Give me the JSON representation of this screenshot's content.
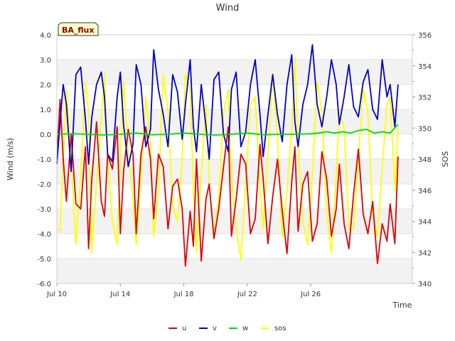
{
  "chart_data": {
    "type": "line",
    "title": "Wind",
    "badge": "BA_flux",
    "xlabel": "Time",
    "ylabel": "Wind (m/s)",
    "y2label": "SOS",
    "x_unit": "days since Jul 10",
    "xlim": [
      0,
      22.4
    ],
    "ylim": [
      -6,
      4
    ],
    "y2lim": [
      340,
      356
    ],
    "x_ticks": [
      {
        "value": 0,
        "label": "Jul 10"
      },
      {
        "value": 4,
        "label": "Jul 14"
      },
      {
        "value": 8,
        "label": "Jul 18"
      },
      {
        "value": 12,
        "label": "Jul 22"
      },
      {
        "value": 16,
        "label": "Jul 26"
      }
    ],
    "y_ticks": [
      {
        "value": 4,
        "label": "4.0"
      },
      {
        "value": 3,
        "label": "3.0"
      },
      {
        "value": 2,
        "label": "2.0"
      },
      {
        "value": 1,
        "label": "1.0"
      },
      {
        "value": 0,
        "label": "0.0"
      },
      {
        "value": -1,
        "label": "-1.0"
      },
      {
        "value": -2,
        "label": "-2.0"
      },
      {
        "value": -3,
        "label": "-3.0"
      },
      {
        "value": -4,
        "label": "-4.0"
      },
      {
        "value": -5,
        "label": "-5.0"
      },
      {
        "value": -6,
        "label": "-6.0"
      }
    ],
    "y2_ticks": [
      {
        "value": 356,
        "label": "356"
      },
      {
        "value": 354,
        "label": "354"
      },
      {
        "value": 352,
        "label": "352"
      },
      {
        "value": 350,
        "label": "350"
      },
      {
        "value": 348,
        "label": "348"
      },
      {
        "value": 346,
        "label": "346"
      },
      {
        "value": 344,
        "label": "344"
      },
      {
        "value": 342,
        "label": "342"
      },
      {
        "value": 340,
        "label": "340"
      }
    ],
    "series": [
      {
        "name": "u",
        "color": "#e00000",
        "axis": "left",
        "x": [
          0.0,
          0.2,
          0.4,
          0.6,
          0.9,
          1.2,
          1.5,
          1.8,
          2.0,
          2.2,
          2.5,
          2.8,
          3.0,
          3.2,
          3.5,
          3.8,
          4.0,
          4.2,
          4.5,
          4.8,
          5.0,
          5.3,
          5.6,
          5.9,
          6.1,
          6.4,
          6.7,
          7.0,
          7.3,
          7.6,
          7.9,
          8.1,
          8.4,
          8.6,
          8.8,
          9.1,
          9.4,
          9.6,
          9.9,
          10.2,
          10.5,
          10.8,
          11.0,
          11.3,
          11.6,
          11.9,
          12.2,
          12.5,
          12.8,
          13.0,
          13.3,
          13.6,
          13.9,
          14.2,
          14.5,
          14.8,
          15.0,
          15.2,
          15.5,
          15.8,
          16.1,
          16.4,
          16.7,
          17.0,
          17.3,
          17.6,
          17.8,
          18.1,
          18.4,
          18.7,
          19.0,
          19.3,
          19.6,
          19.9,
          20.2,
          20.5,
          20.8,
          21.0,
          21.3,
          21.5
        ],
        "values": [
          -1.0,
          1.4,
          -1.0,
          -2.7,
          0.0,
          -2.8,
          -3.0,
          -0.5,
          -4.6,
          -1.8,
          0.5,
          -2.7,
          -3.3,
          -0.8,
          -1.4,
          0.3,
          -4.0,
          -1.5,
          0.2,
          -0.8,
          -4.0,
          -0.8,
          0.3,
          -1.0,
          -3.4,
          -0.8,
          -1.3,
          -3.8,
          -2.1,
          -1.8,
          -3.0,
          -5.3,
          -3.1,
          -4.5,
          -1.0,
          -5.1,
          -2.6,
          -2.0,
          -4.2,
          -3.0,
          -1.3,
          0.3,
          -4.1,
          -2.6,
          -0.8,
          -1.2,
          -4.0,
          -3.4,
          -0.4,
          -1.8,
          -4.4,
          -2.5,
          -1.0,
          -3.1,
          -4.8,
          -1.9,
          -0.5,
          -3.9,
          -2.0,
          -1.5,
          -4.3,
          -3.6,
          -0.7,
          -1.8,
          -4.1,
          -3.0,
          -1.2,
          -3.6,
          -4.6,
          -2.4,
          -0.6,
          -3.2,
          -4.0,
          -2.7,
          -5.2,
          -3.6,
          -4.3,
          -2.8,
          -4.4,
          -0.9
        ]
      },
      {
        "name": "v",
        "color": "#0000cc",
        "axis": "left",
        "x": [
          0.0,
          0.2,
          0.4,
          0.6,
          0.9,
          1.2,
          1.5,
          1.8,
          2.0,
          2.2,
          2.5,
          2.8,
          3.0,
          3.2,
          3.5,
          3.8,
          4.0,
          4.2,
          4.5,
          4.8,
          5.0,
          5.3,
          5.6,
          5.9,
          6.1,
          6.4,
          6.7,
          7.0,
          7.3,
          7.6,
          7.9,
          8.1,
          8.4,
          8.6,
          8.8,
          9.1,
          9.4,
          9.6,
          9.9,
          10.2,
          10.5,
          10.8,
          11.0,
          11.3,
          11.6,
          11.9,
          12.2,
          12.5,
          12.8,
          13.0,
          13.3,
          13.6,
          13.9,
          14.2,
          14.5,
          14.8,
          15.0,
          15.2,
          15.5,
          15.8,
          16.1,
          16.4,
          16.7,
          17.0,
          17.3,
          17.6,
          17.8,
          18.1,
          18.4,
          18.7,
          19.0,
          19.3,
          19.6,
          19.9,
          20.2,
          20.5,
          20.8,
          21.0,
          21.3,
          21.5
        ],
        "values": [
          -1.2,
          0.5,
          2.0,
          1.2,
          -1.5,
          2.4,
          2.7,
          0.6,
          -1.2,
          0.7,
          2.0,
          2.5,
          1.5,
          -0.8,
          -1.1,
          1.5,
          2.5,
          0.4,
          -1.3,
          -0.4,
          2.8,
          2.0,
          -0.5,
          0.2,
          3.4,
          1.8,
          0.8,
          -0.5,
          2.4,
          1.7,
          -0.2,
          1.2,
          3.0,
          0.3,
          -0.7,
          2.0,
          0.3,
          -1.0,
          2.2,
          2.5,
          0.0,
          -0.7,
          1.8,
          2.5,
          -0.5,
          0.1,
          2.0,
          3.0,
          0.8,
          -0.9,
          0.8,
          2.4,
          0.8,
          -0.3,
          2.0,
          3.2,
          0.5,
          -0.5,
          1.2,
          2.0,
          3.6,
          1.2,
          0.3,
          1.5,
          3.0,
          2.0,
          0.4,
          1.5,
          2.8,
          1.1,
          0.7,
          2.1,
          2.6,
          1.0,
          0.6,
          3.0,
          1.5,
          2.0,
          0.3,
          2.0
        ]
      },
      {
        "name": "w",
        "color": "#00dd00",
        "axis": "left",
        "x": [
          0.0,
          1.0,
          2.0,
          3.0,
          4.0,
          5.0,
          6.0,
          7.0,
          8.0,
          9.0,
          10.0,
          11.0,
          12.0,
          13.0,
          14.0,
          15.0,
          16.0,
          16.5,
          17.0,
          17.5,
          18.0,
          18.5,
          19.0,
          19.5,
          20.0,
          20.5,
          21.0,
          21.5
        ],
        "values": [
          0.0,
          0.02,
          0.0,
          -0.03,
          0.0,
          0.05,
          -0.02,
          0.0,
          0.05,
          0.0,
          -0.03,
          0.0,
          0.05,
          -0.02,
          0.0,
          0.0,
          0.02,
          0.05,
          0.1,
          0.05,
          0.1,
          0.05,
          0.15,
          0.2,
          0.05,
          0.1,
          0.05,
          0.4
        ]
      },
      {
        "name": "sos",
        "color": "#ffff00",
        "axis": "right",
        "x": [
          0.0,
          0.2,
          0.4,
          0.6,
          0.9,
          1.2,
          1.5,
          1.8,
          2.0,
          2.2,
          2.5,
          2.8,
          3.0,
          3.2,
          3.5,
          3.8,
          4.0,
          4.2,
          4.5,
          4.8,
          5.0,
          5.3,
          5.6,
          5.9,
          6.1,
          6.4,
          6.7,
          7.0,
          7.3,
          7.6,
          7.9,
          8.1,
          8.4,
          8.6,
          8.8,
          9.1,
          9.4,
          9.6,
          9.9,
          10.2,
          10.5,
          10.8,
          11.0,
          11.3,
          11.6,
          11.9,
          12.2,
          12.5,
          12.8,
          13.0,
          13.3,
          13.6,
          13.9,
          14.2,
          14.5,
          14.8,
          15.0,
          15.2,
          15.5,
          15.8,
          16.1,
          16.4,
          16.7,
          17.0,
          17.3,
          17.6,
          17.8,
          18.1,
          18.4,
          18.7,
          19.0,
          19.3,
          19.6,
          19.9,
          20.2,
          20.5,
          20.8,
          21.0,
          21.3,
          21.5
        ],
        "values": [
          343.5,
          343.4,
          348.0,
          352.5,
          348.0,
          342.5,
          347.0,
          353.0,
          351.0,
          342.0,
          346.5,
          350.5,
          353.5,
          348.0,
          344.0,
          342.5,
          348.0,
          353.0,
          348.5,
          345.5,
          342.5,
          347.0,
          352.0,
          349.0,
          343.0,
          346.0,
          353.5,
          351.0,
          345.0,
          344.0,
          348.0,
          353.5,
          352.5,
          346.0,
          342.0,
          347.0,
          351.5,
          346.5,
          343.0,
          345.5,
          351.0,
          352.5,
          347.0,
          343.5,
          341.5,
          346.5,
          351.5,
          352.0,
          346.0,
          343.5,
          348.5,
          353.5,
          349.5,
          343.0,
          346.0,
          350.0,
          354.5,
          349.0,
          344.0,
          342.5,
          347.0,
          353.0,
          351.0,
          344.5,
          342.0,
          347.0,
          351.0,
          350.0,
          343.5,
          343.5,
          348.0,
          352.5,
          351.0,
          344.5,
          343.0,
          347.5,
          351.5,
          352.0,
          346.0,
          350.0
        ]
      }
    ],
    "legend": [
      {
        "label": "u",
        "color": "#e00000"
      },
      {
        "label": "v",
        "color": "#0000cc"
      },
      {
        "label": "w",
        "color": "#00dd00"
      },
      {
        "label": "sos",
        "color": "#ffff00"
      }
    ],
    "legend_position": "bottom-center",
    "grid": true
  }
}
